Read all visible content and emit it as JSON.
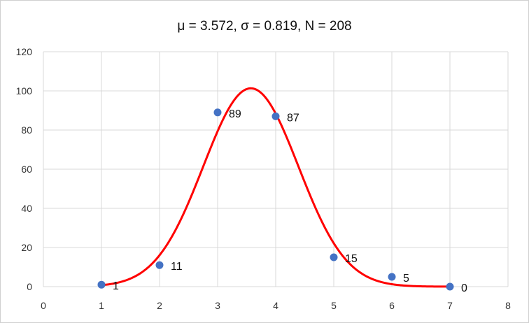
{
  "chart_data": {
    "type": "scatter",
    "title": "μ = 3.572, σ = 0.819, N = 208",
    "xlabel": "",
    "ylabel": "",
    "xlim": [
      0,
      8
    ],
    "ylim": [
      0,
      120
    ],
    "x_ticks": [
      0,
      1,
      2,
      3,
      4,
      5,
      6,
      7,
      8
    ],
    "y_ticks": [
      0,
      20,
      40,
      60,
      80,
      100,
      120
    ],
    "grid": true,
    "legend": "none",
    "points": [
      {
        "x": 1,
        "y": 1,
        "label": "1"
      },
      {
        "x": 2,
        "y": 11,
        "label": "11"
      },
      {
        "x": 3,
        "y": 89,
        "label": "89"
      },
      {
        "x": 4,
        "y": 87,
        "label": "87"
      },
      {
        "x": 5,
        "y": 15,
        "label": "15"
      },
      {
        "x": 6,
        "y": 5,
        "label": "5"
      },
      {
        "x": 7,
        "y": 0,
        "label": "0"
      }
    ],
    "fit_curve": {
      "type": "normal",
      "mean": 3.572,
      "sd": 0.819,
      "n": 208,
      "x_range": [
        1,
        7
      ]
    },
    "colors": {
      "points": "#4472C4",
      "curve": "#FF0000",
      "grid": "#D9D9D9"
    }
  }
}
